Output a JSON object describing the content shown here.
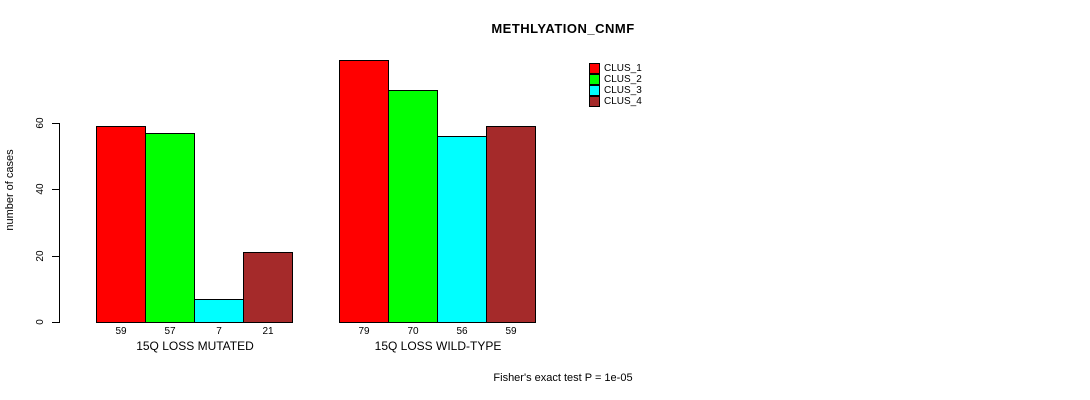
{
  "title": "METHLYATION_CNMF",
  "footer": "Fisher's exact test P = 1e-05",
  "chart_data": {
    "type": "bar",
    "title": "METHLYATION_CNMF",
    "xlabel": "",
    "ylabel": "number of cases",
    "yticks": [
      0,
      20,
      40,
      60
    ],
    "ylim": [
      0,
      79
    ],
    "grid": false,
    "legend_position": "top-right",
    "annotation": "Fisher's exact test P = 1e-05",
    "series": [
      "CLUS_1",
      "CLUS_2",
      "CLUS_3",
      "CLUS_4"
    ],
    "colors": [
      "#ff0000",
      "#00ff00",
      "#00ffff",
      "#a52a2a"
    ],
    "groups": [
      {
        "label": "15Q LOSS MUTATED",
        "values": [
          59,
          57,
          7,
          21
        ]
      },
      {
        "label": "15Q LOSS WILD-TYPE",
        "values": [
          79,
          70,
          56,
          59
        ]
      }
    ]
  }
}
